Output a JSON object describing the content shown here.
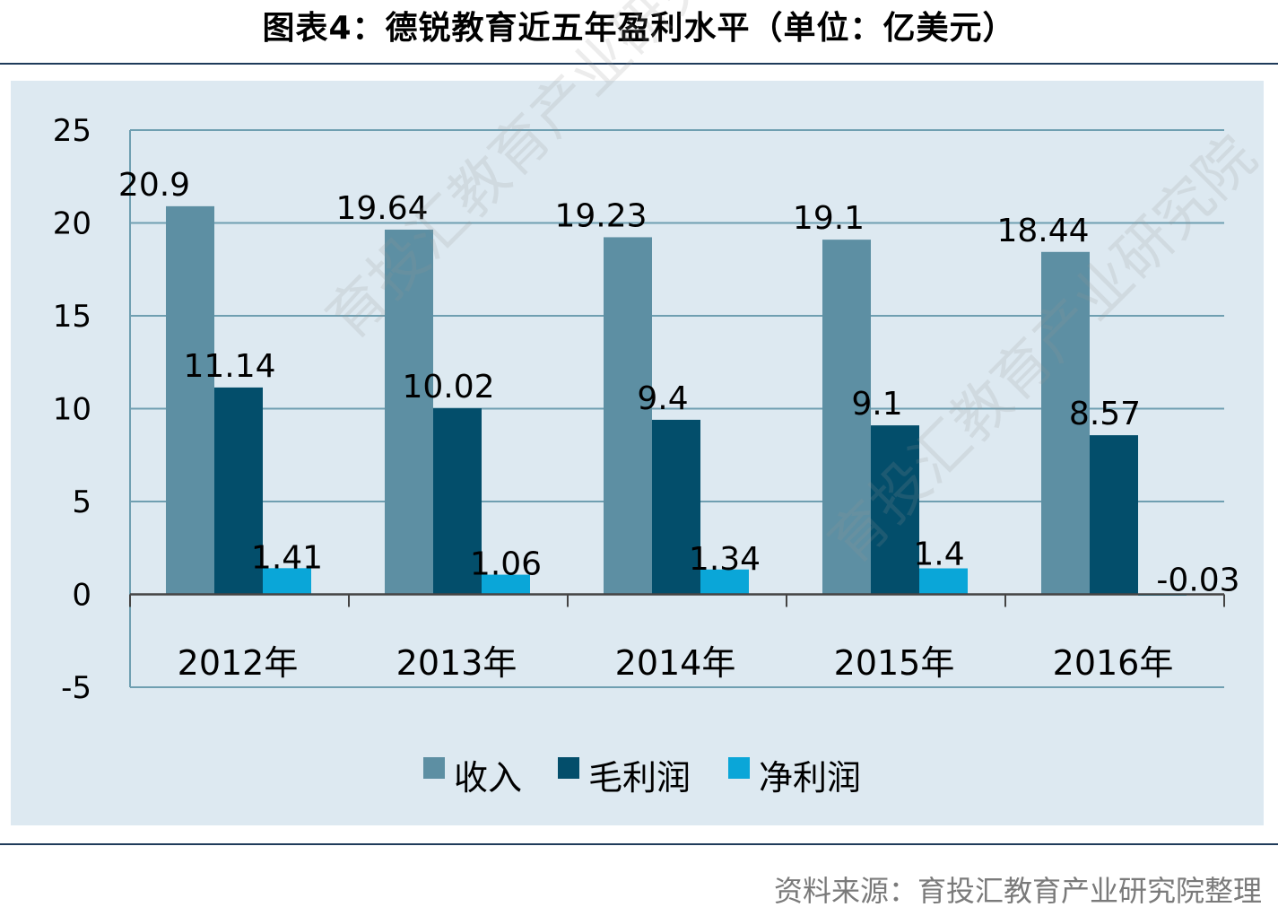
{
  "title": "图表4：德锐教育近五年盈利水平（单位：亿美元）",
  "source": "资料来源：育投汇教育产业研究院整理",
  "watermark": {
    "text_a": "育投汇教育产业研究院",
    "text_b": "育投汇教育产业研究院"
  },
  "colors": {
    "revenue": "#5d8fa3",
    "gross": "#034e6b",
    "net": "#0aa6d8",
    "grid": "#6f9fb1",
    "axis": "#444444",
    "panel": "#dde9f1"
  },
  "chart_data": {
    "type": "bar",
    "title": "图表4：德锐教育近五年盈利水平（单位：亿美元）",
    "categories": [
      "2012年",
      "2013年",
      "2014年",
      "2015年",
      "2016年"
    ],
    "series": [
      {
        "name": "收入",
        "values": [
          20.9,
          19.64,
          19.23,
          19.1,
          18.44
        ],
        "labels": [
          "20.9",
          "19.64",
          "19.23",
          "19.1",
          "18.44"
        ]
      },
      {
        "name": "毛利润",
        "values": [
          11.14,
          10.02,
          9.4,
          9.1,
          8.57
        ],
        "labels": [
          "11.14",
          "10.02",
          "9.4",
          "9.1",
          "8.57"
        ]
      },
      {
        "name": "净利润",
        "values": [
          1.41,
          1.06,
          1.34,
          1.4,
          -0.03
        ],
        "labels": [
          "1.41",
          "1.06",
          "1.34",
          "1.4",
          "-0.03"
        ]
      }
    ],
    "ylim": [
      -5,
      25
    ],
    "yticks": [
      "25",
      "20",
      "15",
      "10",
      "5",
      "0",
      "-5"
    ],
    "ytick_values": [
      25,
      20,
      15,
      10,
      5,
      0,
      -5
    ],
    "grid": true,
    "legend_position": "bottom"
  }
}
